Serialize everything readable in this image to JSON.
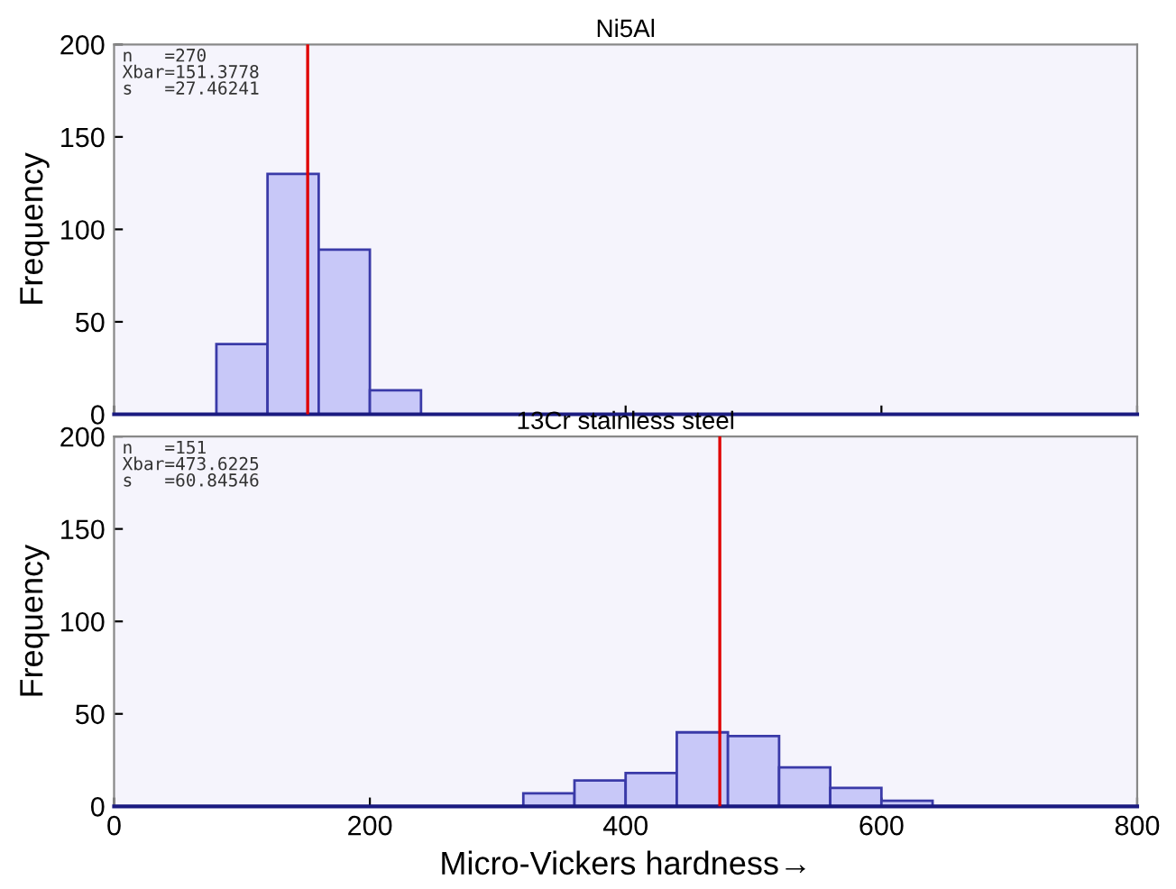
{
  "chart_data": [
    {
      "type": "histogram",
      "title": "Ni5Al",
      "ylabel": "Frequency",
      "bins": [
        80,
        120,
        160,
        200,
        240
      ],
      "values": [
        38,
        130,
        89,
        13
      ],
      "color": "#c8c8f8",
      "xlim": [
        0,
        800
      ],
      "xticks": [
        0,
        200,
        400,
        600,
        800
      ],
      "ylim": [
        0,
        200
      ],
      "yticks": [
        0,
        50,
        100,
        150,
        200
      ],
      "tick_labels": "y",
      "grid": false,
      "ref_lines": [
        {
          "axis": "x",
          "value": 151.3778,
          "color": "#e00000"
        }
      ],
      "annotations": [
        "n   =270\nXbar=151.3778\ns   =27.46241"
      ]
    },
    {
      "type": "histogram",
      "title": "13Cr stainless steel",
      "xlabel": "Micro-Vickers hardness→",
      "ylabel": "Frequency",
      "bins": [
        320,
        360,
        400,
        440,
        480,
        520,
        560,
        600,
        640
      ],
      "values": [
        7,
        14,
        18,
        40,
        38,
        21,
        10,
        3
      ],
      "color": "#c8c8f8",
      "xlim": [
        0,
        800
      ],
      "xticks": [
        0,
        200,
        400,
        600,
        800
      ],
      "ylim": [
        0,
        200
      ],
      "yticks": [
        0,
        50,
        100,
        150,
        200
      ],
      "grid": false,
      "ref_lines": [
        {
          "axis": "x",
          "value": 473.6225,
          "color": "#e00000"
        }
      ],
      "annotations": [
        "n   =151\nXbar=473.6225\ns   =60.84546"
      ]
    }
  ]
}
